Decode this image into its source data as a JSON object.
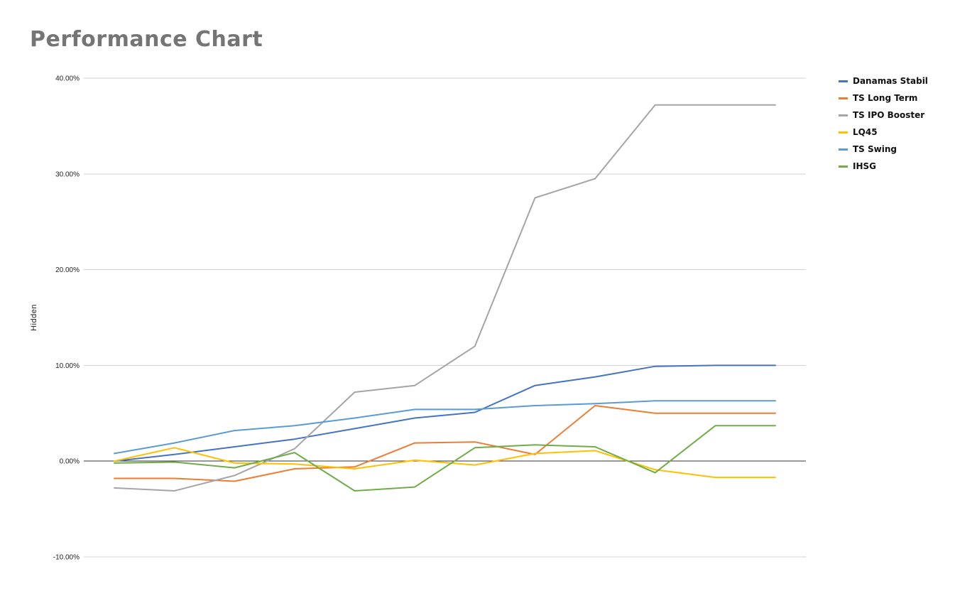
{
  "chart_data": {
    "type": "line",
    "title": "Performance Chart",
    "xlabel": "",
    "ylabel": "Hidden",
    "ylim": [
      -10,
      40
    ],
    "yticks": [
      {
        "value": 40,
        "label": "40.00%"
      },
      {
        "value": 30,
        "label": "30.00%"
      },
      {
        "value": 20,
        "label": "20.00%"
      },
      {
        "value": 10,
        "label": "10.00%"
      },
      {
        "value": 0,
        "label": "0.00%"
      },
      {
        "value": -10,
        "label": "-10.00%"
      }
    ],
    "x": [
      1,
      2,
      3,
      4,
      5,
      6,
      7,
      8,
      9,
      10,
      11,
      12
    ],
    "grid": true,
    "legend_position": "right",
    "series": [
      {
        "name": "Danamas Stabil",
        "color": "#4472c4",
        "values": [
          0.0,
          0.7,
          1.5,
          2.3,
          3.4,
          4.5,
          5.1,
          7.9,
          8.8,
          9.9,
          10.0,
          10.0
        ]
      },
      {
        "name": "TS Long Term",
        "color": "#ed7d31",
        "values": [
          -1.8,
          -1.8,
          -2.1,
          -0.8,
          -0.6,
          1.9,
          2.0,
          0.7,
          5.8,
          5.0,
          5.0,
          5.0
        ]
      },
      {
        "name": "TS IPO Booster",
        "color": "#a5a5a5",
        "values": [
          -2.8,
          -3.1,
          -1.5,
          1.3,
          7.2,
          7.9,
          12.0,
          27.5,
          29.5,
          37.2,
          37.2,
          37.2
        ]
      },
      {
        "name": "LQ45",
        "color": "#ffc000",
        "values": [
          0.0,
          1.4,
          -0.2,
          -0.3,
          -0.8,
          0.1,
          -0.4,
          0.8,
          1.1,
          -0.9,
          -1.7,
          -1.7
        ]
      },
      {
        "name": "TS Swing",
        "color": "#5b9bd5",
        "values": [
          0.8,
          1.9,
          3.2,
          3.7,
          4.5,
          5.4,
          5.4,
          5.8,
          6.0,
          6.3,
          6.3,
          6.3
        ]
      },
      {
        "name": "IHSG",
        "color": "#70ad47",
        "values": [
          -0.2,
          -0.1,
          -0.7,
          0.9,
          -3.1,
          -2.7,
          1.4,
          1.7,
          1.5,
          -1.2,
          3.7,
          3.7
        ]
      }
    ]
  }
}
